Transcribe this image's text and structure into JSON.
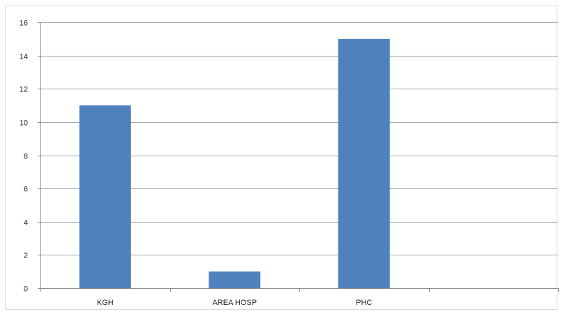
{
  "chart_data": {
    "type": "bar",
    "title": "",
    "xlabel": "",
    "ylabel": "",
    "categories": [
      "KGH",
      "AREA HOSP",
      "PHC",
      ""
    ],
    "values": [
      11,
      1,
      15,
      null
    ],
    "ylim": [
      0,
      16
    ],
    "yticks": [
      0,
      2,
      4,
      6,
      8,
      10,
      12,
      14,
      16
    ],
    "grid": true,
    "legend": "none",
    "colors": {
      "bar": "#4f81bd",
      "gridline": "#a6a6a6",
      "axis": "#8c8c8c"
    }
  }
}
